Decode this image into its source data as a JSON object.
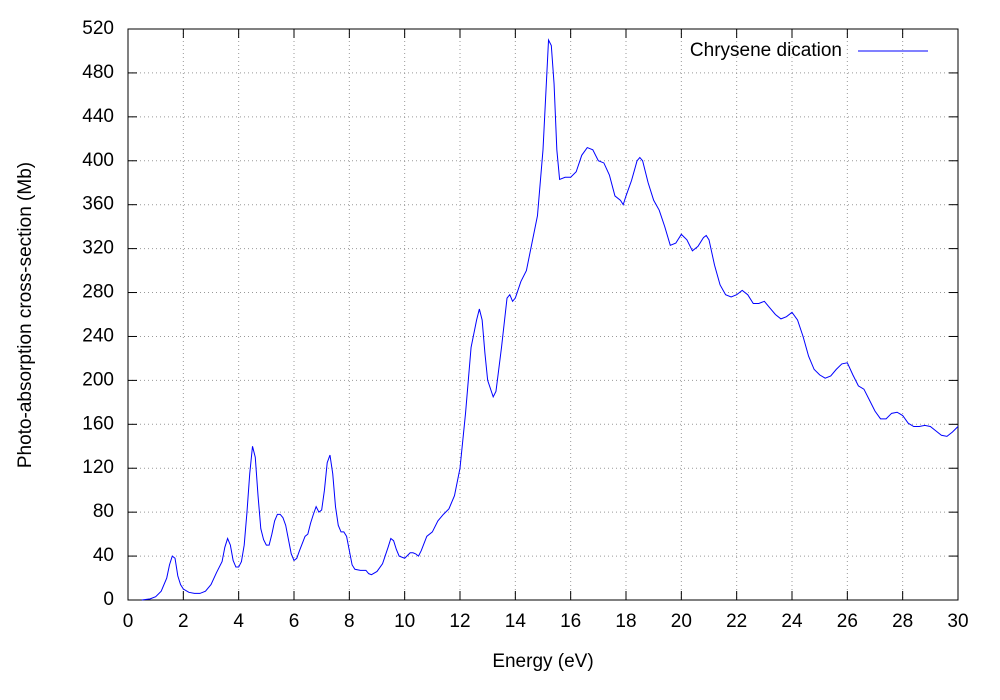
{
  "chart_data": {
    "type": "line",
    "x_label": "Energy (eV)",
    "y_label": "Photo-absorption cross-section (Mb)",
    "xlim": [
      0,
      30
    ],
    "ylim": [
      0,
      520
    ],
    "xticks": [
      0,
      2,
      4,
      6,
      8,
      10,
      12,
      14,
      16,
      18,
      20,
      22,
      24,
      26,
      28,
      30
    ],
    "yticks": [
      0,
      40,
      80,
      120,
      160,
      200,
      240,
      280,
      320,
      360,
      400,
      440,
      480,
      520
    ],
    "grid": true,
    "legend": "top-right",
    "x": [
      0.5,
      0.8,
      1.0,
      1.2,
      1.4,
      1.5,
      1.6,
      1.7,
      1.8,
      1.9,
      2.0,
      2.2,
      2.4,
      2.6,
      2.8,
      3.0,
      3.2,
      3.4,
      3.5,
      3.6,
      3.7,
      3.8,
      3.9,
      4.0,
      4.1,
      4.2,
      4.3,
      4.4,
      4.5,
      4.6,
      4.7,
      4.8,
      4.9,
      5.0,
      5.1,
      5.2,
      5.3,
      5.4,
      5.5,
      5.6,
      5.7,
      5.8,
      5.9,
      6.0,
      6.1,
      6.2,
      6.4,
      6.5,
      6.6,
      6.7,
      6.8,
      6.9,
      7.0,
      7.1,
      7.2,
      7.3,
      7.4,
      7.5,
      7.6,
      7.7,
      7.8,
      7.9,
      8.0,
      8.1,
      8.2,
      8.4,
      8.6,
      8.7,
      8.8,
      9.0,
      9.2,
      9.4,
      9.5,
      9.6,
      9.7,
      9.8,
      10.0,
      10.2,
      10.3,
      10.4,
      10.5,
      10.6,
      10.8,
      11.0,
      11.2,
      11.4,
      11.6,
      11.8,
      12.0,
      12.2,
      12.4,
      12.6,
      12.7,
      12.8,
      12.9,
      13.0,
      13.2,
      13.3,
      13.5,
      13.7,
      13.8,
      13.9,
      14.0,
      14.2,
      14.4,
      14.6,
      14.8,
      15.0,
      15.2,
      15.3,
      15.4,
      15.5,
      15.6,
      15.8,
      16.0,
      16.2,
      16.4,
      16.6,
      16.8,
      17.0,
      17.2,
      17.4,
      17.6,
      17.8,
      17.9,
      18.0,
      18.2,
      18.4,
      18.5,
      18.6,
      18.8,
      19.0,
      19.2,
      19.4,
      19.6,
      19.8,
      20.0,
      20.2,
      20.4,
      20.6,
      20.8,
      20.9,
      21.0,
      21.2,
      21.4,
      21.6,
      21.8,
      22.0,
      22.2,
      22.4,
      22.6,
      22.8,
      23.0,
      23.2,
      23.4,
      23.6,
      23.8,
      24.0,
      24.2,
      24.4,
      24.6,
      24.8,
      25.0,
      25.2,
      25.4,
      25.6,
      25.8,
      26.0,
      26.2,
      26.4,
      26.6,
      26.8,
      27.0,
      27.2,
      27.4,
      27.6,
      27.8,
      28.0,
      28.2,
      28.4,
      28.6,
      28.8,
      29.0,
      29.2,
      29.4,
      29.6,
      29.8,
      30.0
    ],
    "series": [
      {
        "name": "Chrysene dication",
        "color": "#0000ff",
        "values": [
          0,
          1,
          3,
          8,
          20,
          32,
          40,
          38,
          22,
          14,
          10,
          7,
          6,
          6,
          8,
          14,
          25,
          35,
          48,
          56,
          50,
          36,
          30,
          30,
          35,
          50,
          80,
          115,
          140,
          130,
          95,
          65,
          55,
          50,
          50,
          60,
          72,
          78,
          78,
          75,
          68,
          55,
          42,
          36,
          38,
          45,
          58,
          60,
          70,
          78,
          85,
          80,
          82,
          100,
          125,
          132,
          115,
          85,
          68,
          62,
          62,
          58,
          45,
          32,
          28,
          27,
          27,
          24,
          23,
          26,
          33,
          48,
          56,
          54,
          46,
          40,
          38,
          43,
          43,
          42,
          40,
          45,
          58,
          62,
          72,
          78,
          83,
          95,
          120,
          170,
          230,
          255,
          265,
          255,
          225,
          200,
          185,
          190,
          230,
          275,
          278,
          272,
          275,
          290,
          300,
          325,
          350,
          410,
          510,
          505,
          470,
          410,
          383,
          385,
          385,
          390,
          405,
          412,
          410,
          400,
          398,
          387,
          368,
          364,
          360,
          368,
          382,
          400,
          403,
          400,
          380,
          364,
          355,
          340,
          323,
          325,
          333,
          328,
          318,
          322,
          330,
          332,
          328,
          305,
          287,
          278,
          276,
          278,
          282,
          278,
          270,
          270,
          272,
          266,
          260,
          256,
          258,
          262,
          255,
          240,
          222,
          210,
          205,
          202,
          204,
          210,
          215,
          216,
          205,
          195,
          192,
          182,
          172,
          165,
          165,
          170,
          171,
          168,
          161,
          158,
          158,
          159,
          158,
          154,
          150,
          149,
          153,
          158
        ]
      }
    ]
  }
}
